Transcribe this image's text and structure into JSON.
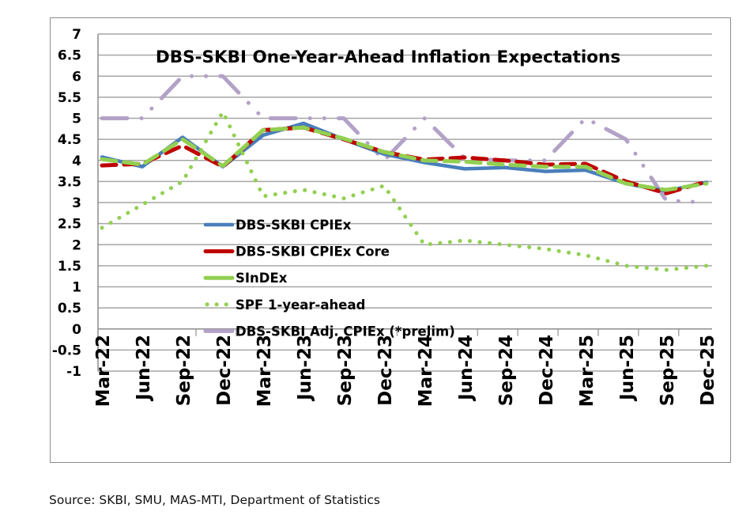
{
  "source_note": "Source: SKBI, SMU, MAS-MTI, Department of Statistics",
  "chart_data": {
    "type": "line",
    "title": "DBS-SKBI One-Year-Ahead Inflation Expectations",
    "xlabel": "",
    "ylabel": "",
    "ylim": [
      -1,
      7
    ],
    "ytick_step": 0.5,
    "yticks": [
      "7",
      "6.5",
      "6",
      "5.5",
      "5",
      "4.5",
      "4",
      "3.5",
      "3",
      "2.5",
      "2",
      "1.5",
      "1",
      "0.5",
      "0",
      "-0.5",
      "-1"
    ],
    "x_axis_crosses_at": 0,
    "grid": true,
    "legend_position": "center-left inside plot",
    "categories": [
      "Mar-22",
      "Jun-22",
      "Sep-22",
      "Dec-22",
      "Mar-23",
      "Jun-23",
      "Sep-23",
      "Dec-23",
      "Mar-24",
      "Jun-24",
      "Sep-24",
      "Dec-24",
      "Mar-25",
      "Jun-25",
      "Sep-25",
      "Dec-25"
    ],
    "series": [
      {
        "name": "DBS-SKBI CPIEx",
        "color": "#4a7ebb",
        "style": "solid",
        "values": [
          4.08,
          3.85,
          4.55,
          3.85,
          4.6,
          4.88,
          4.5,
          4.15,
          3.95,
          3.8,
          3.83,
          3.74,
          3.77,
          3.45,
          3.27,
          3.48
        ]
      },
      {
        "name": "DBS-SKBI CPIEx Core",
        "color": "#c00000",
        "style": "dash",
        "values": [
          3.88,
          3.92,
          4.35,
          3.85,
          4.72,
          4.78,
          4.5,
          4.2,
          4.02,
          4.07,
          4.0,
          3.9,
          3.92,
          3.5,
          3.22,
          3.5
        ]
      },
      {
        "name": "SInDEx",
        "color": "#92d050",
        "style": "dash",
        "values": [
          4.03,
          3.9,
          4.5,
          3.87,
          4.72,
          4.78,
          4.52,
          4.2,
          4.0,
          3.97,
          3.9,
          3.85,
          3.85,
          3.45,
          3.3,
          3.45
        ]
      },
      {
        "name": "SPF 1-year-ahead",
        "color": "#92d050",
        "style": "dot",
        "values": [
          2.4,
          2.95,
          3.5,
          5.15,
          3.15,
          3.3,
          3.1,
          3.4,
          2.0,
          2.1,
          2.0,
          1.9,
          1.75,
          1.5,
          1.4,
          1.5
        ]
      },
      {
        "name": "DBS-SKBI Adj. CPIEx (*prelim)",
        "color": "#b3a2c7",
        "style": "longdash-dot",
        "values": [
          5.0,
          5.0,
          6.0,
          6.0,
          5.0,
          5.0,
          5.0,
          4.0,
          5.0,
          4.05,
          4.0,
          4.0,
          5.0,
          4.5,
          3.05,
          3.0
        ]
      }
    ]
  }
}
